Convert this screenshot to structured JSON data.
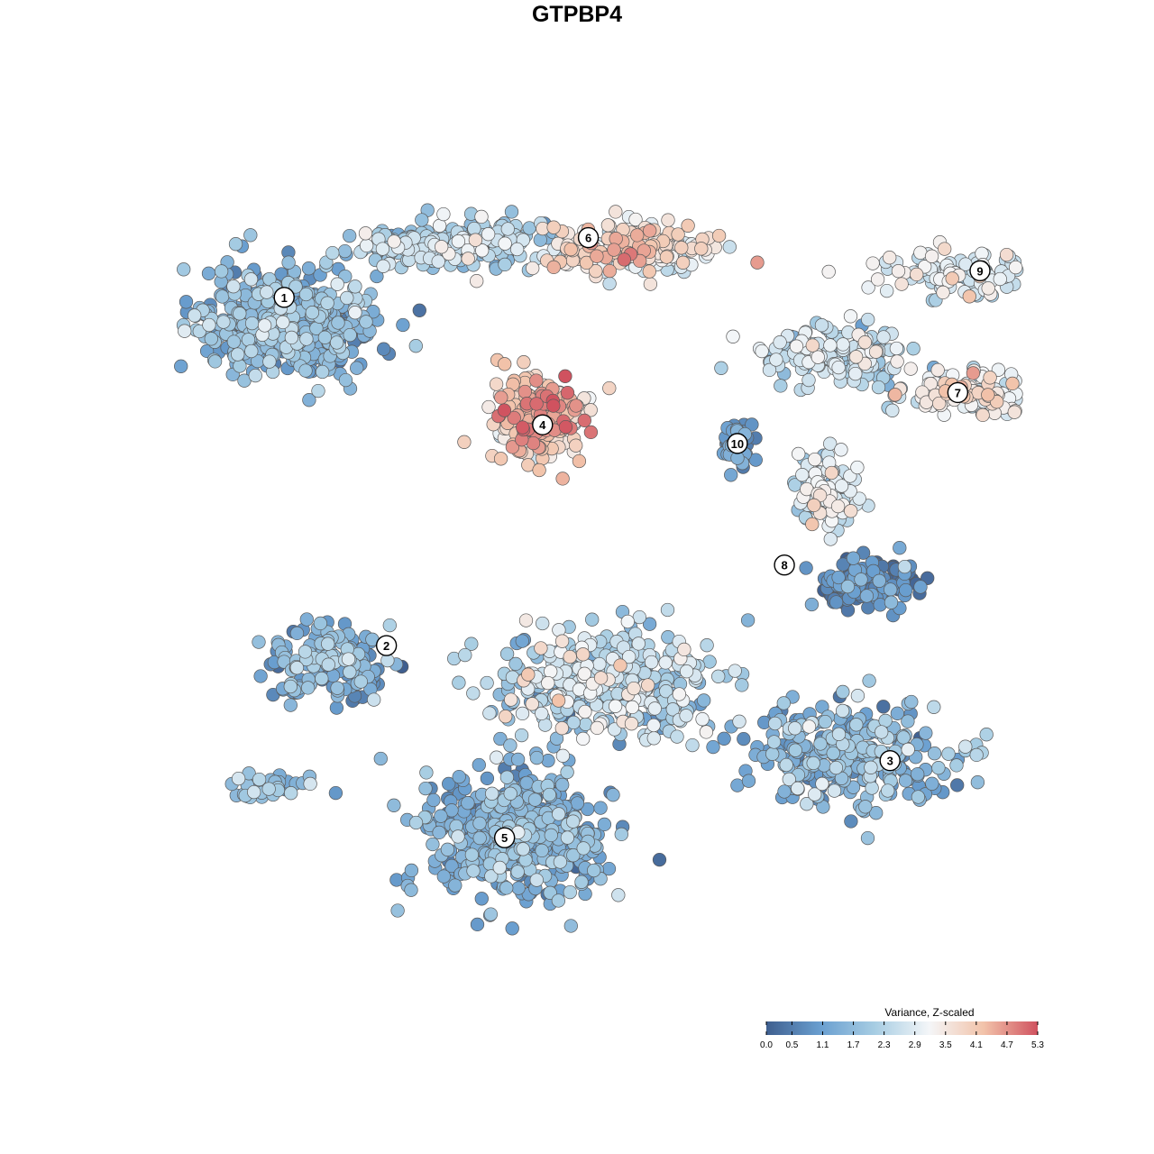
{
  "chart_data": {
    "type": "scatter",
    "title": "GTPBP4",
    "xlabel": "",
    "ylabel": "",
    "xlim": [
      0,
      100
    ],
    "ylim": [
      0,
      100
    ],
    "grid": false,
    "color_scale": {
      "title": "Variance, Z-scaled",
      "min": 0.0,
      "max": 5.3,
      "ticks": [
        "0.0",
        "0.5",
        "1.1",
        "1.7",
        "2.3",
        "2.9",
        "3.5",
        "4.1",
        "4.7",
        "5.3"
      ],
      "colors": [
        "#3f5f8f",
        "#6a9fd0",
        "#a7cde3",
        "#f4f6f8",
        "#f2c3aa",
        "#d0525f"
      ],
      "legend_position": "bottom-right"
    },
    "clusters": [
      {
        "label": "1",
        "x": 11.98,
        "y": 84.0
      },
      {
        "label": "2",
        "x": 24.31,
        "y": 41.32
      },
      {
        "label": "3",
        "x": 85.02,
        "y": 27.22
      },
      {
        "label": "4",
        "x": 43.13,
        "y": 68.38
      },
      {
        "label": "5",
        "x": 38.55,
        "y": 17.77
      },
      {
        "label": "6",
        "x": 48.65,
        "y": 91.32
      },
      {
        "label": "7",
        "x": 93.19,
        "y": 72.33
      },
      {
        "label": "8",
        "x": 72.29,
        "y": 51.19
      },
      {
        "label": "9",
        "x": 95.87,
        "y": 87.26
      },
      {
        "label": "10",
        "x": 66.62,
        "y": 66.09
      }
    ],
    "point_groups": [
      {
        "cluster": "1",
        "cx": 12.5,
        "cy": 81.0,
        "sx": 9.5,
        "sy": 6.0,
        "n": 520,
        "mean": 1.5,
        "sd": 0.55
      },
      {
        "cluster": "1",
        "cx": 32.0,
        "cy": 90.5,
        "sx": 10.0,
        "sy": 2.6,
        "n": 240,
        "mean": 2.1,
        "sd": 0.55
      },
      {
        "cluster": "6",
        "cx": 53.5,
        "cy": 90.0,
        "sx": 8.5,
        "sy": 2.6,
        "n": 250,
        "mean": 3.5,
        "sd": 0.6
      },
      {
        "cluster": "4",
        "cx": 42.5,
        "cy": 69.0,
        "sx": 5.0,
        "sy": 5.0,
        "n": 260,
        "mean": 4.0,
        "sd": 0.6
      },
      {
        "cluster": "10",
        "cx": 66.5,
        "cy": 66.0,
        "sx": 1.6,
        "sy": 3.0,
        "n": 45,
        "mean": 0.9,
        "sd": 0.5
      },
      {
        "cluster": "7",
        "cx": 78.0,
        "cy": 77.0,
        "sx": 8.0,
        "sy": 3.0,
        "n": 170,
        "mean": 2.4,
        "sd": 0.6
      },
      {
        "cluster": "7",
        "cx": 95.0,
        "cy": 72.0,
        "sx": 8.0,
        "sy": 2.6,
        "n": 150,
        "mean": 3.1,
        "sd": 0.55
      },
      {
        "cluster": "9",
        "cx": 94.0,
        "cy": 87.0,
        "sx": 9.0,
        "sy": 2.8,
        "n": 120,
        "mean": 2.9,
        "sd": 0.5
      },
      {
        "cluster": "8",
        "cx": 77.5,
        "cy": 60.0,
        "sx": 3.5,
        "sy": 4.0,
        "n": 110,
        "mean": 2.6,
        "sd": 0.6
      },
      {
        "cluster": "8",
        "cx": 82.0,
        "cy": 49.0,
        "sx": 6.0,
        "sy": 2.6,
        "n": 130,
        "mean": 0.6,
        "sd": 0.5
      },
      {
        "cluster": "2",
        "cx": 17.0,
        "cy": 39.0,
        "sx": 7.0,
        "sy": 4.0,
        "n": 150,
        "mean": 1.4,
        "sd": 0.6
      },
      {
        "cluster": "3",
        "cx": 51.0,
        "cy": 37.0,
        "sx": 12.0,
        "sy": 6.0,
        "n": 380,
        "mean": 2.3,
        "sd": 0.7
      },
      {
        "cluster": "3",
        "cx": 80.0,
        "cy": 28.0,
        "sx": 11.0,
        "sy": 5.5,
        "n": 300,
        "mean": 1.6,
        "sd": 0.6
      },
      {
        "cluster": "5",
        "cx": 40.0,
        "cy": 18.0,
        "sx": 10.0,
        "sy": 7.0,
        "n": 460,
        "mean": 1.4,
        "sd": 0.5
      },
      {
        "cluster": "",
        "cx": 10.0,
        "cy": 24.0,
        "sx": 5.0,
        "sy": 1.6,
        "n": 35,
        "mean": 1.8,
        "sd": 0.5
      }
    ]
  }
}
